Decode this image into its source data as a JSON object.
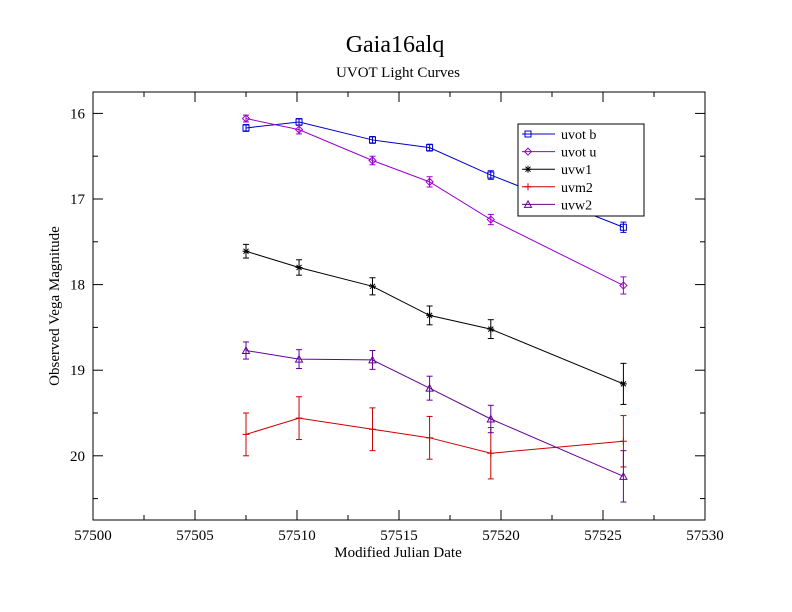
{
  "chart_data": {
    "type": "line",
    "title": "Gaia16alq",
    "subtitle": "UVOT Light Curves",
    "xlabel": "Modified Julian Date",
    "ylabel": "Observed Vega Magnitude",
    "xlim": [
      57500,
      57530
    ],
    "ylim": [
      20.75,
      15.75
    ],
    "y_inverted": true,
    "x_ticks": [
      57500,
      57505,
      57510,
      57515,
      57520,
      57525,
      57530
    ],
    "y_ticks": [
      16,
      17,
      18,
      19,
      20
    ],
    "grid": false,
    "legend_position": "top-right",
    "series": [
      {
        "name": "uvot b",
        "color": "#0000cc",
        "marker": "square",
        "x": [
          57507.5,
          57510.1,
          57513.7,
          57516.5,
          57519.5,
          57526.0
        ],
        "y": [
          16.17,
          16.1,
          16.31,
          16.4,
          16.72,
          17.33
        ],
        "err": [
          0.04,
          0.04,
          0.04,
          0.04,
          0.05,
          0.06
        ]
      },
      {
        "name": "uvot u",
        "color": "#9900cc",
        "marker": "diamond",
        "x": [
          57507.5,
          57510.1,
          57513.7,
          57516.5,
          57519.5,
          57526.0
        ],
        "y": [
          16.06,
          16.19,
          16.55,
          16.8,
          17.24,
          18.01
        ],
        "err": [
          0.04,
          0.05,
          0.05,
          0.06,
          0.06,
          0.1
        ]
      },
      {
        "name": "uvw1",
        "color": "#000000",
        "marker": "asterisk",
        "x": [
          57507.5,
          57510.1,
          57513.7,
          57516.5,
          57519.5,
          57526.0
        ],
        "y": [
          17.61,
          17.8,
          18.02,
          18.36,
          18.52,
          19.16
        ],
        "err": [
          0.08,
          0.09,
          0.1,
          0.11,
          0.11,
          0.24
        ]
      },
      {
        "name": "uvm2",
        "color": "#cc0000",
        "marker": "plus",
        "x": [
          57507.5,
          57510.1,
          57513.7,
          57516.5,
          57519.5,
          57526.0
        ],
        "y": [
          19.75,
          19.56,
          19.69,
          19.79,
          19.97,
          19.83
        ],
        "err": [
          0.25,
          0.25,
          0.25,
          0.25,
          0.3,
          0.3
        ]
      },
      {
        "name": "uvw2",
        "color": "#660099",
        "marker": "triangle",
        "x": [
          57507.5,
          57510.1,
          57513.7,
          57516.5,
          57519.5,
          57526.0
        ],
        "y": [
          18.77,
          18.87,
          18.88,
          19.21,
          19.57,
          20.24
        ],
        "err": [
          0.1,
          0.11,
          0.11,
          0.14,
          0.16,
          0.3
        ]
      }
    ]
  }
}
